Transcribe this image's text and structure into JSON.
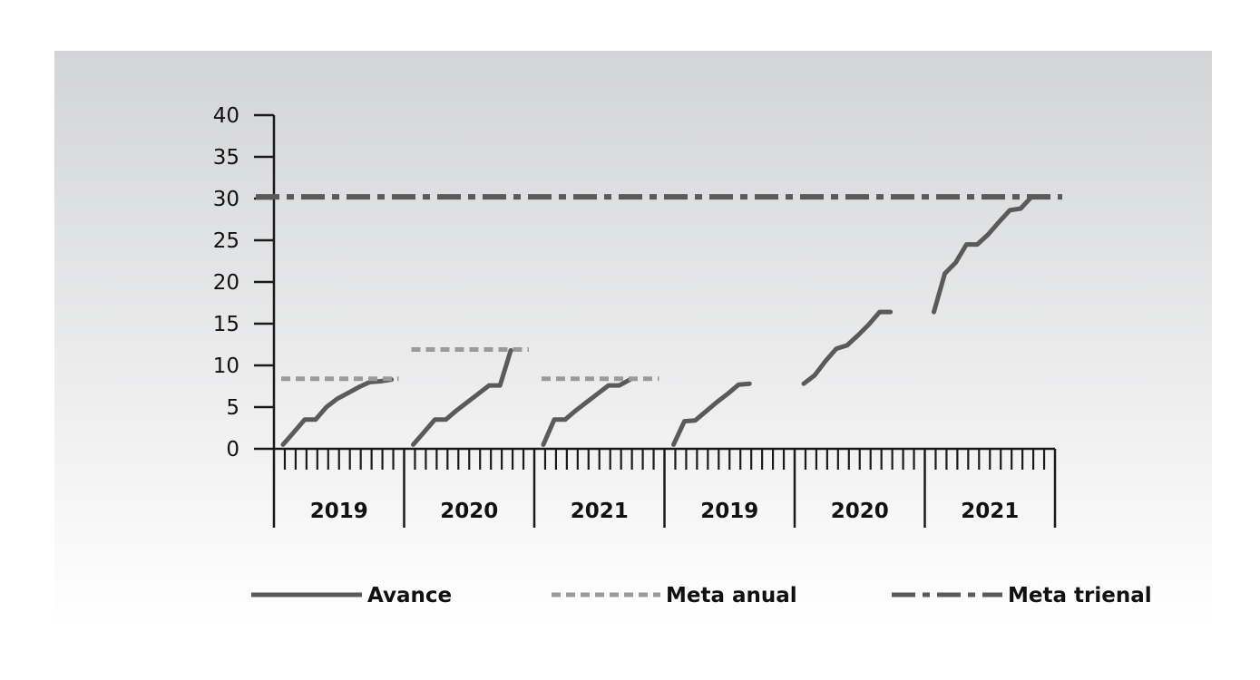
{
  "chart_data": {
    "type": "line",
    "title": "",
    "xlabel": "",
    "ylabel": "",
    "ylim": [
      0,
      40
    ],
    "yticks": [
      "0",
      "5",
      "10",
      "15",
      "20",
      "25",
      "30",
      "35",
      "40"
    ],
    "months_per_year": 12,
    "groups": [
      {
        "label": "2019",
        "panel": "annual"
      },
      {
        "label": "2020",
        "panel": "annual"
      },
      {
        "label": "2021",
        "panel": "annual"
      },
      {
        "label": "2019",
        "panel": "cumulative"
      },
      {
        "label": "2020",
        "panel": "cumulative"
      },
      {
        "label": "2021",
        "panel": "cumulative"
      }
    ],
    "series": [
      {
        "name": "Avance",
        "style": "solid",
        "color": "#5a5a5a",
        "segments": [
          {
            "group": 0,
            "values": [
              0.5,
              2.0,
              3.5,
              3.5,
              5.0,
              6.0,
              6.7,
              7.4,
              8.0,
              8.1,
              8.3
            ]
          },
          {
            "group": 1,
            "values": [
              0.5,
              2.0,
              3.5,
              3.5,
              4.6,
              5.6,
              6.6,
              7.6,
              7.6,
              11.8
            ]
          },
          {
            "group": 2,
            "values": [
              0.5,
              3.5,
              3.5,
              4.6,
              5.6,
              6.6,
              7.6,
              7.6,
              8.3
            ]
          },
          {
            "group": 3,
            "values": [
              0.5,
              3.3,
              3.4,
              4.5,
              5.6,
              6.6,
              7.7,
              7.8
            ]
          },
          {
            "group": 4,
            "values": [
              7.8,
              8.8,
              10.5,
              12.0,
              12.4,
              13.6,
              14.9,
              16.4,
              16.4
            ]
          },
          {
            "group": 5,
            "values": [
              16.4,
              21.0,
              22.3,
              24.5,
              24.5,
              25.7,
              27.2,
              28.6,
              28.8,
              30.2
            ]
          }
        ]
      },
      {
        "name": "Meta anual",
        "style": "dotted",
        "color": "#9a9a9a",
        "segments": [
          {
            "group": 0,
            "value": 8.4
          },
          {
            "group": 1,
            "value": 11.9
          },
          {
            "group": 2,
            "value": 8.4
          }
        ]
      },
      {
        "name": "Meta trienal",
        "style": "dashdot",
        "color": "#5a5a5a",
        "value": 30.2
      }
    ],
    "legend_position": "bottom"
  },
  "colors": {
    "background_top": "#d3d4d6",
    "background_bottom": "#ffffff",
    "axis": "#1a1a1a",
    "avance": "#5a5a5a",
    "meta_anual": "#9a9a9a",
    "meta_trienal": "#5a5a5a"
  }
}
